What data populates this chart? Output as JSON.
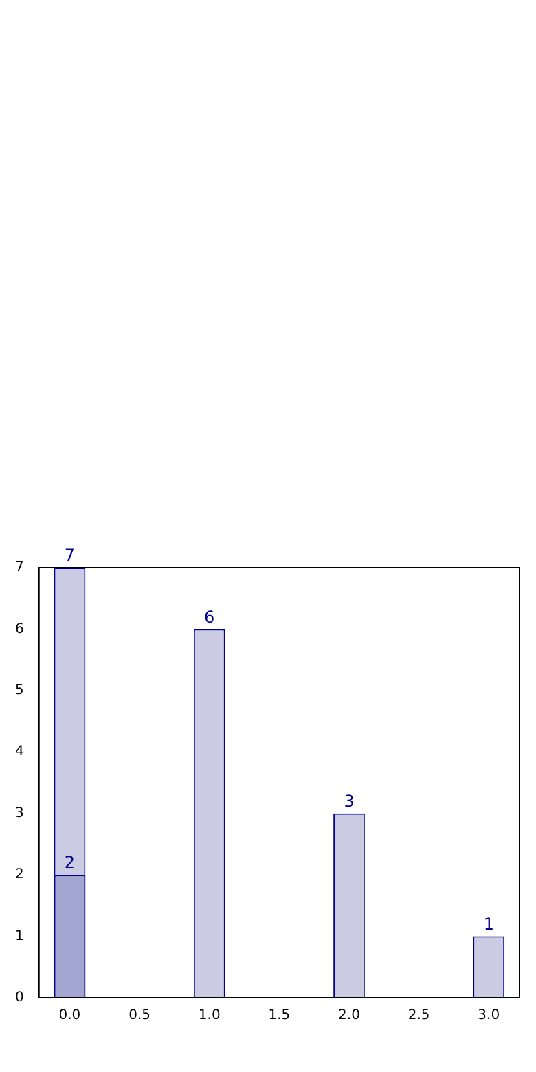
{
  "chart_data": {
    "type": "bar",
    "x": [
      0,
      1,
      2,
      3
    ],
    "series": [
      {
        "color": "#cbcbe3",
        "values": [
          7,
          6,
          3,
          1
        ]
      },
      {
        "color": "#a3a6d1",
        "values": [
          2,
          null,
          null,
          null
        ]
      }
    ],
    "xlim": [
      -0.22,
      3.22
    ],
    "xticks": [
      {
        "value": 0,
        "label": "0.0"
      },
      {
        "value": 0.5,
        "label": "0.5"
      },
      {
        "value": 1,
        "label": "1.0"
      },
      {
        "value": 1.5,
        "label": "1.5"
      },
      {
        "value": 2,
        "label": "2.0"
      },
      {
        "value": 2.5,
        "label": "2.5"
      },
      {
        "value": 3,
        "label": "3.0"
      }
    ],
    "ylim": [
      0,
      7
    ],
    "yticks": [
      0,
      1,
      2,
      3,
      4,
      5,
      6,
      7
    ],
    "grid": false,
    "legend": false,
    "data_labels": true
  }
}
